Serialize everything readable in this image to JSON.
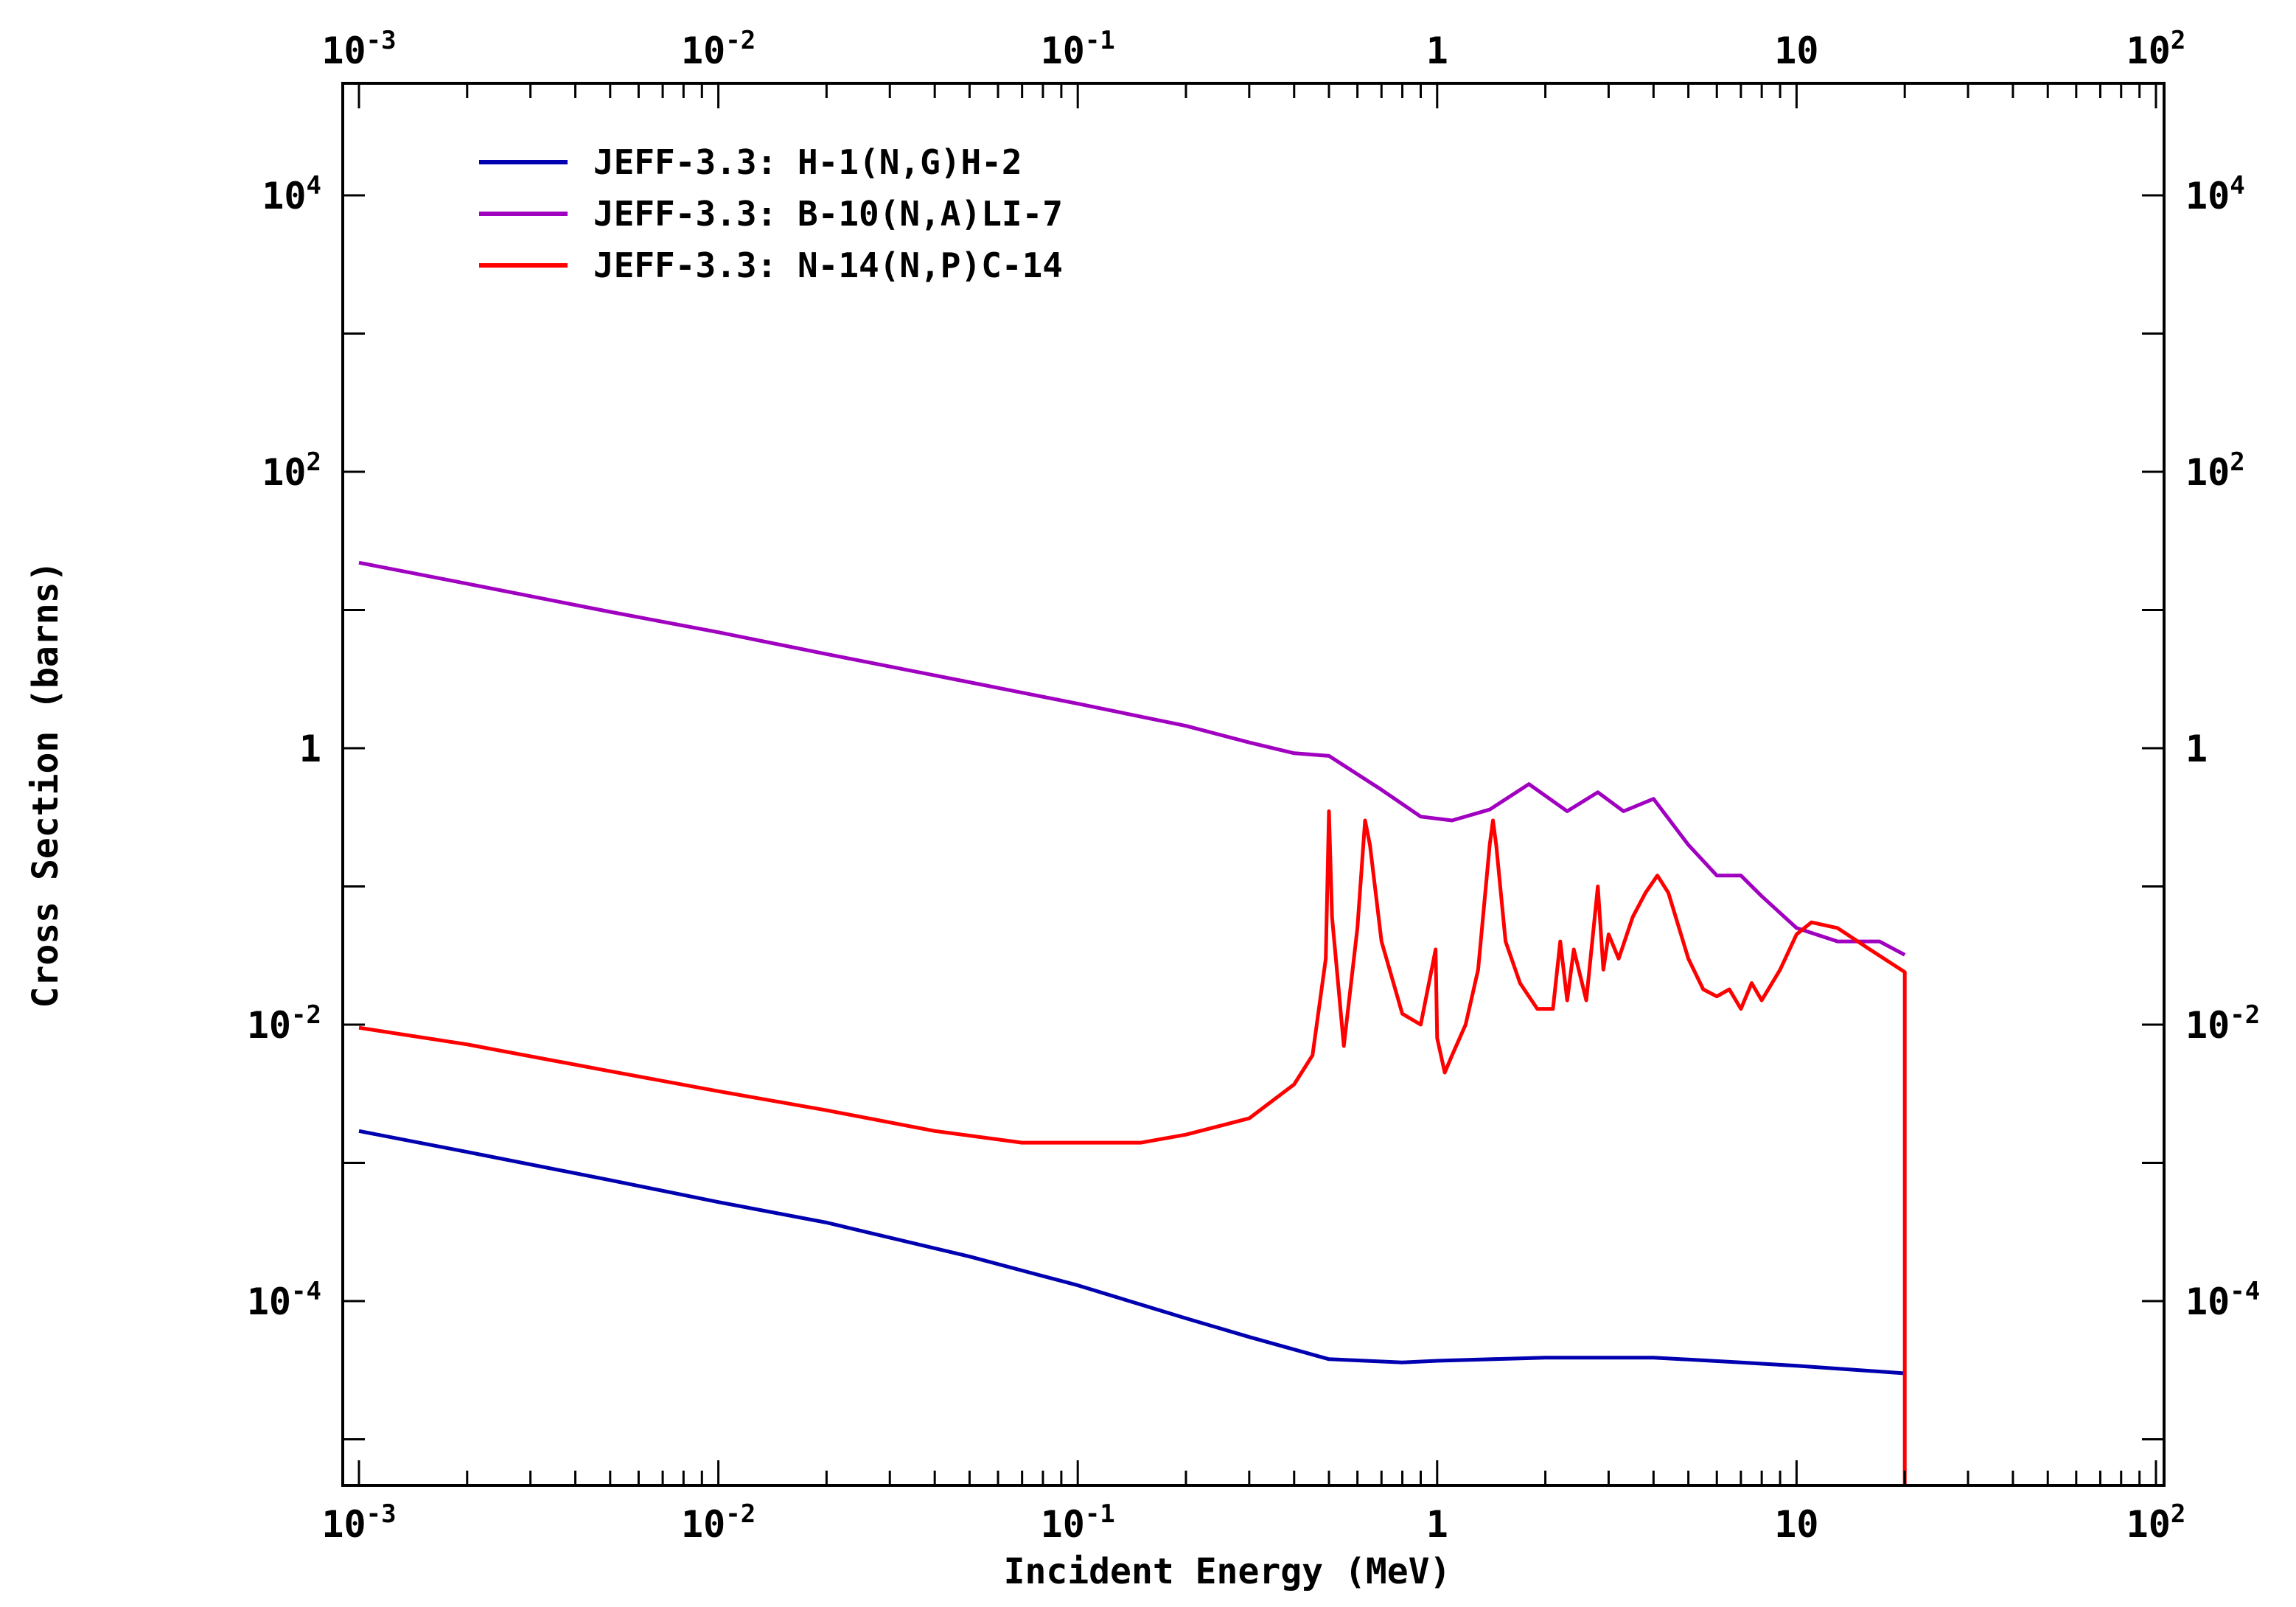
{
  "chart_data": {
    "type": "line",
    "title": "",
    "xlabel": "Incident Energy (MeV)",
    "ylabel": "Cross Section (barns)",
    "x_scale": "log",
    "y_scale": "log",
    "xlim": [
      0.001,
      100
    ],
    "ylim": [
      2.5e-06,
      100000
    ],
    "x_ticks": [
      {
        "value": 0.001,
        "base": "10",
        "exp": "-3"
      },
      {
        "value": 0.01,
        "base": "10",
        "exp": "-2"
      },
      {
        "value": 0.1,
        "base": "10",
        "exp": "-1"
      },
      {
        "value": 1,
        "base": "1",
        "exp": ""
      },
      {
        "value": 10,
        "base": "10",
        "exp": ""
      },
      {
        "value": 100,
        "base": "10",
        "exp": "2"
      }
    ],
    "y_ticks": [
      {
        "value": 10000,
        "base": "10",
        "exp": "4"
      },
      {
        "value": 100,
        "base": "10",
        "exp": "2"
      },
      {
        "value": 1,
        "base": "1",
        "exp": ""
      },
      {
        "value": 0.01,
        "base": "10",
        "exp": "-2"
      },
      {
        "value": 0.0001,
        "base": "10",
        "exp": "-4"
      }
    ],
    "grid": false,
    "legend_position": "top-left",
    "series": [
      {
        "name": "JEFF-3.3: H-1(N,G)H-2",
        "color": "#0000b0",
        "x": [
          0.001,
          0.002,
          0.005,
          0.01,
          0.02,
          0.05,
          0.1,
          0.2,
          0.3,
          0.5,
          0.8,
          1,
          2,
          4,
          7,
          10,
          20
        ],
        "y": [
          0.0017,
          0.0012,
          0.00075,
          0.00052,
          0.00037,
          0.00021,
          0.00013,
          7.5e-05,
          5.5e-05,
          3.8e-05,
          3.6e-05,
          3.7e-05,
          3.9e-05,
          3.9e-05,
          3.6e-05,
          3.4e-05,
          3e-05
        ]
      },
      {
        "name": "JEFF-3.3: B-10(N,A)LI-7",
        "color": "#a000c0",
        "x": [
          0.001,
          0.002,
          0.005,
          0.01,
          0.02,
          0.05,
          0.1,
          0.2,
          0.3,
          0.4,
          0.5,
          0.7,
          0.9,
          1.1,
          1.4,
          1.8,
          2.3,
          2.8,
          3.3,
          4,
          5,
          6,
          7,
          8,
          10,
          13,
          17,
          20
        ],
        "y": [
          22,
          15.5,
          9.7,
          6.9,
          4.8,
          3.0,
          2.1,
          1.45,
          1.1,
          0.92,
          0.88,
          0.5,
          0.32,
          0.3,
          0.36,
          0.55,
          0.35,
          0.48,
          0.35,
          0.43,
          0.2,
          0.12,
          0.12,
          0.085,
          0.05,
          0.04,
          0.04,
          0.032
        ]
      },
      {
        "name": "JEFF-3.3: N-14(N,P)C-14",
        "color": "#ff0000",
        "x": [
          0.001,
          0.002,
          0.005,
          0.01,
          0.02,
          0.04,
          0.07,
          0.1,
          0.15,
          0.2,
          0.3,
          0.4,
          0.45,
          0.49,
          0.5,
          0.51,
          0.55,
          0.6,
          0.63,
          0.65,
          0.7,
          0.8,
          0.9,
          0.99,
          1.0,
          1.05,
          1.1,
          1.2,
          1.3,
          1.4,
          1.43,
          1.46,
          1.55,
          1.7,
          1.9,
          2.1,
          2.2,
          2.3,
          2.4,
          2.6,
          2.8,
          2.9,
          3.0,
          3.2,
          3.5,
          3.8,
          4.1,
          4.4,
          5.0,
          5.5,
          6.0,
          6.5,
          7.0,
          7.5,
          8.0,
          9.0,
          10,
          11,
          13,
          16,
          20,
          20.001
        ],
        "y": [
          0.0095,
          0.0072,
          0.0046,
          0.0033,
          0.0024,
          0.0017,
          0.0014,
          0.0014,
          0.0014,
          0.0016,
          0.0021,
          0.0037,
          0.006,
          0.03,
          0.35,
          0.06,
          0.007,
          0.05,
          0.3,
          0.2,
          0.04,
          0.012,
          0.01,
          0.035,
          0.008,
          0.0045,
          0.006,
          0.01,
          0.025,
          0.2,
          0.3,
          0.2,
          0.04,
          0.02,
          0.013,
          0.013,
          0.04,
          0.015,
          0.035,
          0.015,
          0.1,
          0.025,
          0.045,
          0.03,
          0.06,
          0.09,
          0.12,
          0.09,
          0.03,
          0.018,
          0.016,
          0.018,
          0.013,
          0.02,
          0.015,
          0.025,
          0.045,
          0.055,
          0.05,
          0.035,
          0.024,
          2.5e-06
        ]
      }
    ]
  }
}
